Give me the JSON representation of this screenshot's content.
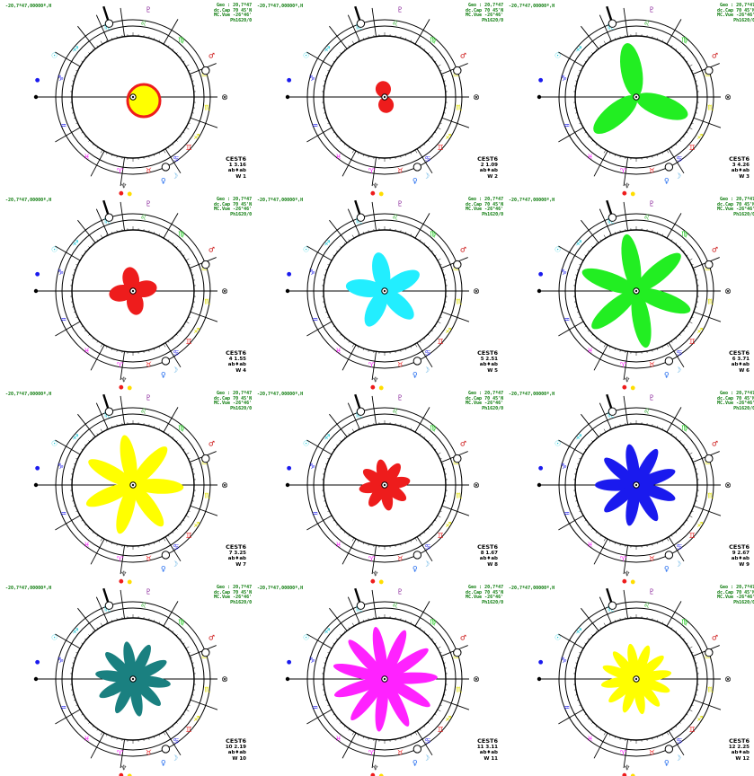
{
  "header": {
    "left": "-20,7º47,00000º,H",
    "right_lines": [
      "Geo : 20,7º47",
      "dc.Cap 70 45'N",
      "MC.Vue -26°46'",
      "Ph1620/0"
    ]
  },
  "footer": {
    "title": "CEST6",
    "label": "W"
  },
  "colors": {
    "red": "#ee1c1c",
    "yellow": "#ffff00",
    "green": "#22ee22",
    "cyan": "#22eeff",
    "blue": "#1a1aee",
    "teal": "#1a8080",
    "magenta": "#ff22ff",
    "ring": "#000000"
  },
  "zodiac_glyphs": {
    "aries": "♈",
    "taurus": "♉",
    "gemini": "♊",
    "cancer": "♋",
    "leo": "♌",
    "virgo": "♍",
    "libra": "♎",
    "scorpio": "♏",
    "sagittarius": "♐",
    "capricorn": "♑",
    "aquarius": "♒",
    "pisces": "♓"
  },
  "planet_glyphs": {
    "pluto": "♇",
    "mars": "♂",
    "venus": "♀",
    "moon": "☽",
    "sun": "☉",
    "neptune": "♆"
  },
  "panels": [
    {
      "index": 1,
      "petals": 1,
      "color": "red",
      "fill2": "yellow",
      "style": "disc",
      "foot_line": "1   3.16",
      "sub": "ab♦ab",
      "w": "W 1"
    },
    {
      "index": 2,
      "petals": 2,
      "color": "red",
      "style": "petal",
      "length": 0.28,
      "foot_line": "2   1.09",
      "sub": "ab♦ab",
      "w": "W 2"
    },
    {
      "index": 3,
      "petals": 3,
      "color": "green",
      "style": "petal",
      "length": 0.95,
      "foot_line": "3   4.26",
      "sub": "ab♦ab",
      "w": "W 3"
    },
    {
      "index": 4,
      "petals": 4,
      "color": "red",
      "style": "petal",
      "length": 0.42,
      "foot_line": "4   1.55",
      "sub": "ab♦ab",
      "w": "W 4"
    },
    {
      "index": 5,
      "petals": 5,
      "color": "cyan",
      "style": "petal",
      "length": 0.68,
      "foot_line": "5   2.51",
      "sub": "ab♦ab",
      "w": "W 5"
    },
    {
      "index": 6,
      "petals": 6,
      "color": "green",
      "style": "petal",
      "length": 1.0,
      "foot_line": "6   3.71",
      "sub": "ab♦ab",
      "w": "W 6"
    },
    {
      "index": 7,
      "petals": 7,
      "color": "yellow",
      "style": "petal",
      "length": 0.88,
      "foot_line": "7   3.25",
      "sub": "ab♦ab",
      "w": "W 7"
    },
    {
      "index": 8,
      "petals": 8,
      "color": "red",
      "style": "petal",
      "length": 0.45,
      "foot_line": "8   1.67",
      "sub": "ab♦ab",
      "w": "W 8"
    },
    {
      "index": 9,
      "petals": 9,
      "color": "blue",
      "style": "petal",
      "length": 0.72,
      "foot_line": "9   2.67",
      "sub": "ab♦ab",
      "w": "W 9"
    },
    {
      "index": 10,
      "petals": 10,
      "color": "teal",
      "style": "petal",
      "length": 0.66,
      "foot_line": "10  2.19",
      "sub": "ab♦ab",
      "w": "W 10"
    },
    {
      "index": 11,
      "petals": 11,
      "color": "magenta",
      "style": "petal",
      "length": 0.92,
      "foot_line": "11  3.11",
      "sub": "ab♦ab",
      "w": "W 11"
    },
    {
      "index": 12,
      "petals": 12,
      "color": "yellow",
      "style": "petal",
      "length": 0.62,
      "foot_line": "12  2.25",
      "sub": "ab♦ab",
      "w": "W 12"
    }
  ]
}
